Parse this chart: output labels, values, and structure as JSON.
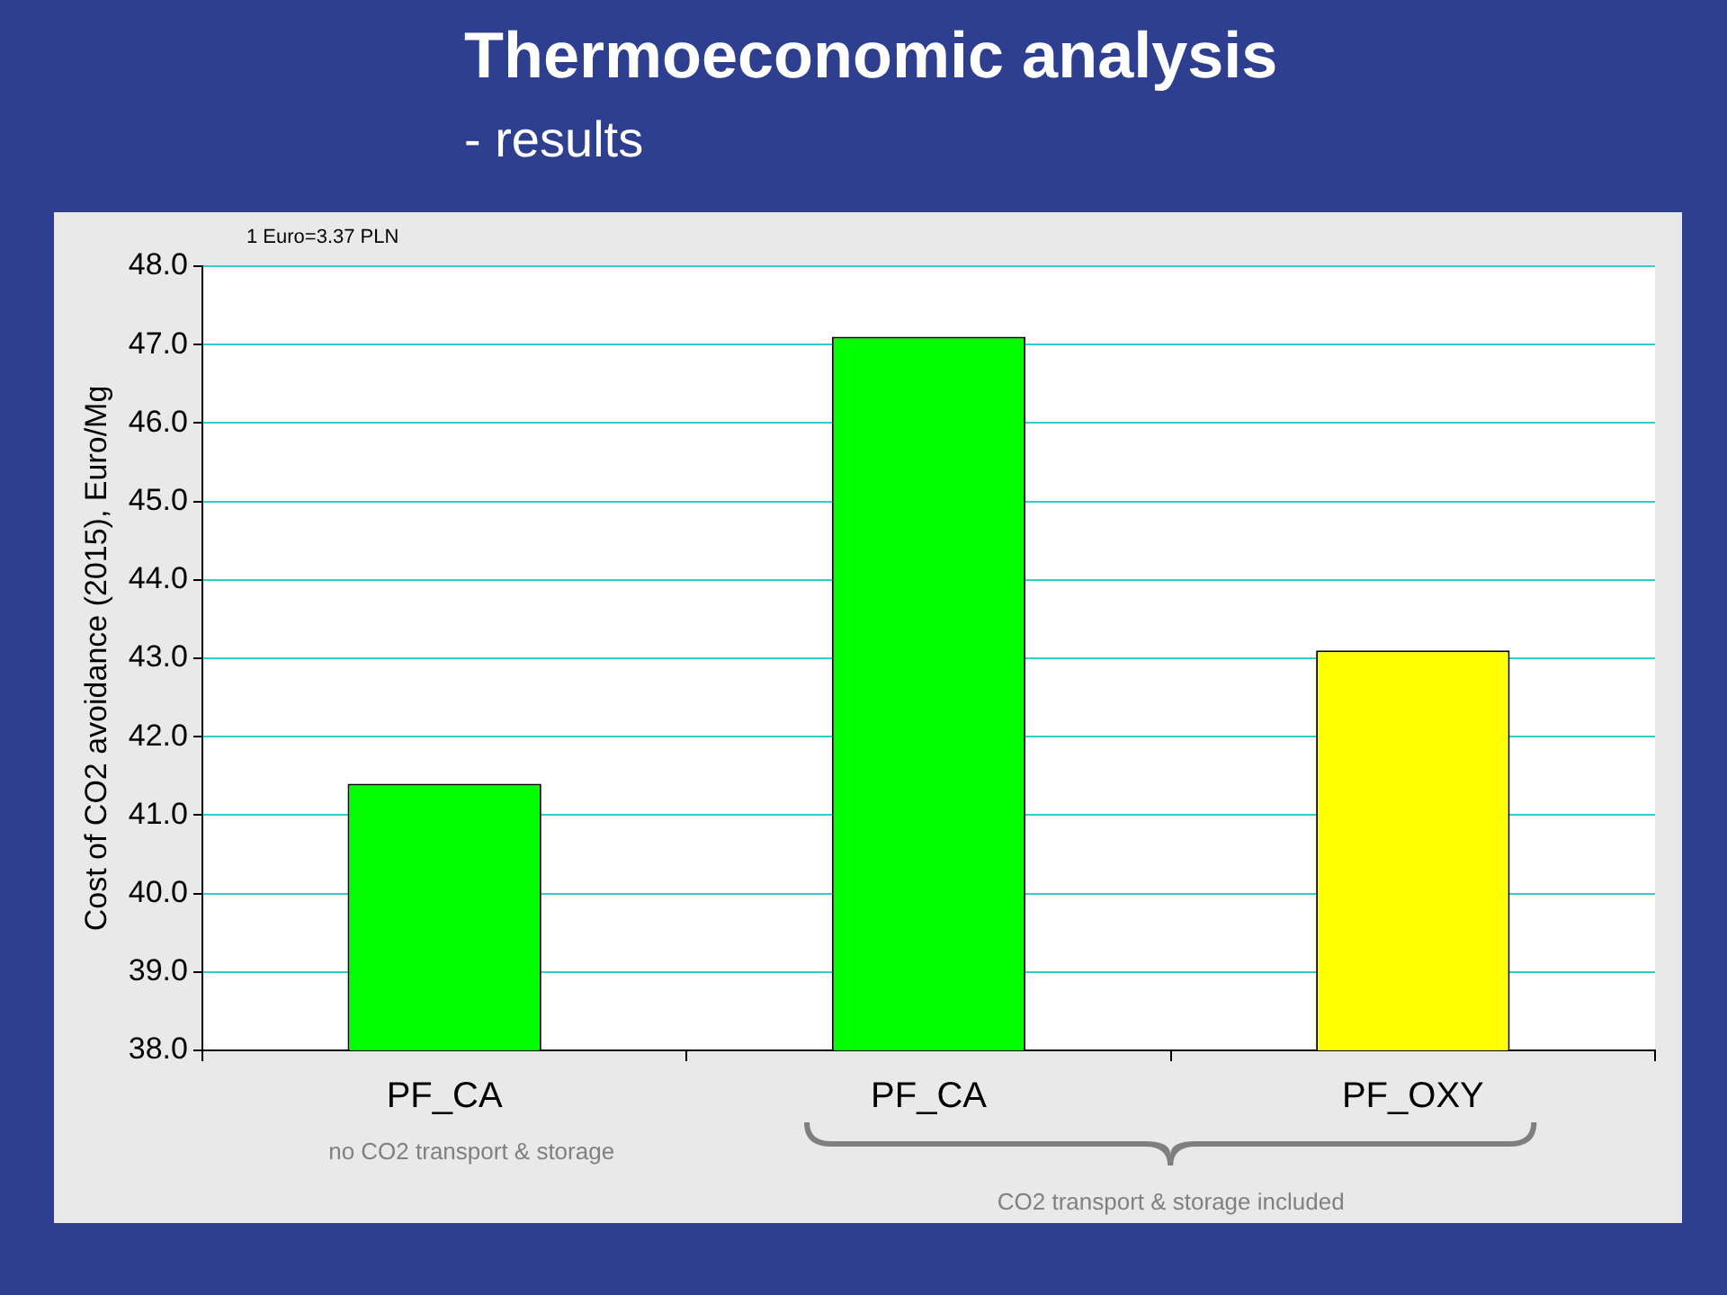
{
  "chart_data": {
    "type": "bar",
    "title": "Thermoeconomic analysis",
    "subtitle": "- results",
    "ylabel": "Cost of CO2 avoidance (2015), Euro/Mg",
    "categories": [
      "PF_CA",
      "PF_CA",
      "PF_OXY"
    ],
    "values": [
      41.4,
      47.1,
      43.1
    ],
    "colors": [
      "#00ff00",
      "#00ff00",
      "#ffff00"
    ],
    "ylim": [
      38,
      48
    ],
    "yticks": [
      {
        "value": 38,
        "label": "38.0"
      },
      {
        "value": 39,
        "label": "39.0"
      },
      {
        "value": 40,
        "label": "40.0"
      },
      {
        "value": 41,
        "label": "41.0"
      },
      {
        "value": 42,
        "label": "42.0"
      },
      {
        "value": 43,
        "label": "43.0"
      },
      {
        "value": 44,
        "label": "44.0"
      },
      {
        "value": 45,
        "label": "45.0"
      },
      {
        "value": 46,
        "label": "46.0"
      },
      {
        "value": 47,
        "label": "47.0"
      },
      {
        "value": 48,
        "label": "48.0"
      }
    ],
    "grid": "y",
    "legend": false,
    "annotations": [
      "1 Euro=3.37 PLN",
      "no CO2 transport & storage",
      "CO2 transport & storage included"
    ]
  }
}
